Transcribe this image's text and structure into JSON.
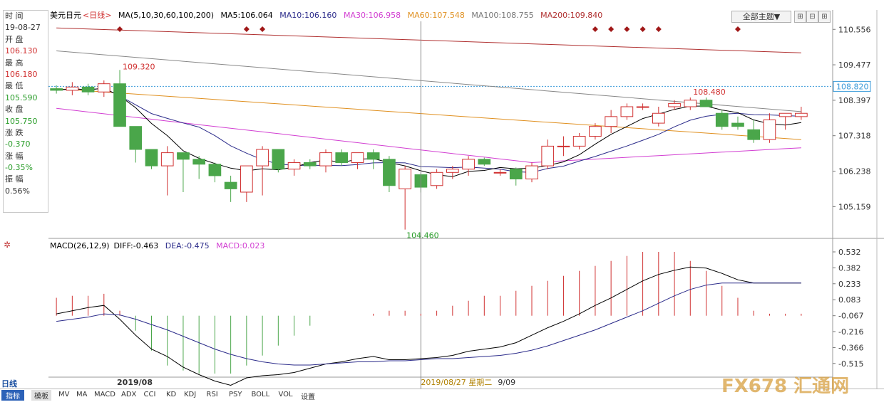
{
  "header": {
    "symbol": "美元日元",
    "period": "<日线>",
    "ma_params": "MA(5,10,30,60,100,200)",
    "ma5": "MA5:106.064",
    "ma10": "MA10:106.160",
    "ma30": "MA30:106.958",
    "ma60": "MA60:107.548",
    "ma100": "MA100:108.755",
    "ma200": "MA200:109.840",
    "theme_button": "全部主题▼"
  },
  "info_panel": [
    {
      "label": "时 间",
      "value": "19-08-27",
      "value_color": "dark"
    },
    {
      "label": "开 盘",
      "value": "106.130",
      "value_color": "red"
    },
    {
      "label": "最 高",
      "value": "106.180",
      "value_color": "red"
    },
    {
      "label": "最 低",
      "value": "105.590",
      "value_color": "green"
    },
    {
      "label": "收 盘",
      "value": "105.750",
      "value_color": "green"
    },
    {
      "label": "涨 跌",
      "value": "-0.370",
      "value_color": "green"
    },
    {
      "label": "涨 幅",
      "value": "-0.35%",
      "value_color": "green"
    },
    {
      "label": "振 幅",
      "value": "0.56%",
      "value_color": "dark"
    }
  ],
  "price_axis": {
    "ticks": [
      "110.556",
      "109.477",
      "108.397",
      "107.318",
      "106.238",
      "105.159"
    ],
    "current_price_label": "108.820",
    "annotations": [
      "109.320",
      "108.480",
      "104.460"
    ]
  },
  "macd": {
    "title": "MACD(26,12,9)",
    "diff": "DIFF:-0.463",
    "dea": "DEA:-0.475",
    "macd": "MACD:0.023",
    "ticks": [
      "0.532",
      "0.382",
      "0.233",
      "0.083",
      "-0.067",
      "-0.216",
      "-0.366",
      "-0.515"
    ]
  },
  "time_axis": {
    "left_label": "2019/08",
    "cursor_label": "2019/08/27 星期二",
    "right_label": "9/09"
  },
  "tabs": {
    "period_label": "日线",
    "active": "指标",
    "template": "模板",
    "items": [
      "MV",
      "MA",
      "MACD",
      "ADX",
      "CCI",
      "KD",
      "KDJ",
      "RSI",
      "PSY",
      "BOLL",
      "VOL",
      "设置"
    ]
  },
  "watermark": "FX678 汇通网",
  "colors": {
    "up": "#d03030",
    "down": "#4aa64a",
    "ma5": "#000000",
    "ma10": "#2b2b8a",
    "ma30": "#d23fd2",
    "ma60": "#e09020",
    "ma100": "#888888",
    "ma200": "#b03030"
  },
  "chart_data": {
    "type": "candlestick",
    "ylim": [
      104.3,
      110.8
    ],
    "candles": [
      {
        "o": 108.75,
        "h": 108.85,
        "l": 108.6,
        "c": 108.7
      },
      {
        "o": 108.7,
        "h": 108.95,
        "l": 108.55,
        "c": 108.8
      },
      {
        "o": 108.8,
        "h": 108.9,
        "l": 108.55,
        "c": 108.65
      },
      {
        "o": 108.65,
        "h": 109.0,
        "l": 108.5,
        "c": 108.9
      },
      {
        "o": 108.9,
        "h": 109.32,
        "l": 107.6,
        "c": 107.6
      },
      {
        "o": 107.6,
        "h": 107.6,
        "l": 106.5,
        "c": 106.9
      },
      {
        "o": 106.9,
        "h": 106.9,
        "l": 106.3,
        "c": 106.4
      },
      {
        "o": 106.4,
        "h": 107.0,
        "l": 105.5,
        "c": 106.8
      },
      {
        "o": 106.8,
        "h": 106.8,
        "l": 105.6,
        "c": 106.6
      },
      {
        "o": 106.6,
        "h": 106.7,
        "l": 106.0,
        "c": 106.45
      },
      {
        "o": 106.45,
        "h": 106.5,
        "l": 105.9,
        "c": 106.1
      },
      {
        "o": 105.9,
        "h": 106.1,
        "l": 105.3,
        "c": 105.7
      },
      {
        "o": 105.6,
        "h": 106.4,
        "l": 105.3,
        "c": 106.4
      },
      {
        "o": 106.4,
        "h": 107.0,
        "l": 105.5,
        "c": 106.9
      },
      {
        "o": 106.9,
        "h": 106.9,
        "l": 106.2,
        "c": 106.3
      },
      {
        "o": 106.3,
        "h": 106.6,
        "l": 106.1,
        "c": 106.5
      },
      {
        "o": 106.5,
        "h": 106.6,
        "l": 106.3,
        "c": 106.4
      },
      {
        "o": 106.4,
        "h": 106.9,
        "l": 106.2,
        "c": 106.8
      },
      {
        "o": 106.8,
        "h": 106.9,
        "l": 106.4,
        "c": 106.5
      },
      {
        "o": 106.5,
        "h": 106.8,
        "l": 106.3,
        "c": 106.8
      },
      {
        "o": 106.8,
        "h": 106.9,
        "l": 106.3,
        "c": 106.6
      },
      {
        "o": 106.6,
        "h": 106.7,
        "l": 105.6,
        "c": 105.8
      },
      {
        "o": 105.7,
        "h": 106.4,
        "l": 104.46,
        "c": 106.3
      },
      {
        "o": 106.13,
        "h": 106.18,
        "l": 105.59,
        "c": 105.75
      },
      {
        "o": 105.8,
        "h": 106.3,
        "l": 105.7,
        "c": 106.2
      },
      {
        "o": 106.2,
        "h": 106.4,
        "l": 106.0,
        "c": 106.3
      },
      {
        "o": 106.3,
        "h": 106.7,
        "l": 106.1,
        "c": 106.6
      },
      {
        "o": 106.6,
        "h": 106.65,
        "l": 106.4,
        "c": 106.45
      },
      {
        "o": 106.2,
        "h": 106.3,
        "l": 106.1,
        "c": 106.2
      },
      {
        "o": 106.3,
        "h": 106.35,
        "l": 105.8,
        "c": 106.0
      },
      {
        "o": 106.0,
        "h": 106.5,
        "l": 105.9,
        "c": 106.4
      },
      {
        "o": 106.4,
        "h": 107.2,
        "l": 106.3,
        "c": 107.0
      },
      {
        "o": 107.0,
        "h": 107.3,
        "l": 106.7,
        "c": 107.0
      },
      {
        "o": 107.0,
        "h": 107.4,
        "l": 106.9,
        "c": 107.3
      },
      {
        "o": 107.3,
        "h": 107.7,
        "l": 107.2,
        "c": 107.6
      },
      {
        "o": 107.6,
        "h": 108.1,
        "l": 107.4,
        "c": 107.9
      },
      {
        "o": 107.9,
        "h": 108.3,
        "l": 107.8,
        "c": 108.2
      },
      {
        "o": 108.2,
        "h": 108.3,
        "l": 108.1,
        "c": 108.2
      },
      {
        "o": 107.7,
        "h": 108.2,
        "l": 107.6,
        "c": 108.0
      },
      {
        "o": 108.2,
        "h": 108.4,
        "l": 108.1,
        "c": 108.3
      },
      {
        "o": 108.2,
        "h": 108.48,
        "l": 108.1,
        "c": 108.4
      },
      {
        "o": 108.4,
        "h": 108.48,
        "l": 108.2,
        "c": 108.2
      },
      {
        "o": 108.0,
        "h": 108.1,
        "l": 107.5,
        "c": 107.6
      },
      {
        "o": 107.7,
        "h": 107.9,
        "l": 107.5,
        "c": 107.6
      },
      {
        "o": 107.5,
        "h": 107.8,
        "l": 107.1,
        "c": 107.2
      },
      {
        "o": 107.2,
        "h": 108.0,
        "l": 107.1,
        "c": 107.8
      },
      {
        "o": 107.9,
        "h": 108.0,
        "l": 107.5,
        "c": 108.0
      },
      {
        "o": 107.9,
        "h": 108.2,
        "l": 107.8,
        "c": 108.0
      }
    ],
    "macd_hist": [
      0.18,
      0.2,
      0.2,
      0.22,
      0.05,
      -0.15,
      -0.35,
      -0.5,
      -0.55,
      -0.6,
      -0.65,
      -0.6,
      -0.5,
      -0.4,
      -0.3,
      -0.2,
      -0.1,
      0.0,
      0.0,
      0.0,
      0.02,
      0.05,
      0.05,
      0.02,
      0.05,
      0.1,
      0.15,
      0.2,
      0.2,
      0.25,
      0.3,
      0.35,
      0.4,
      0.45,
      0.5,
      0.55,
      0.6,
      0.65,
      0.7,
      0.65,
      0.55,
      0.45,
      0.3,
      0.18,
      0.05,
      0.02,
      0.02,
      0.02
    ],
    "diff": [
      -0.05,
      -0.02,
      0.01,
      0.03,
      -0.1,
      -0.25,
      -0.38,
      -0.45,
      -0.55,
      -0.62,
      -0.68,
      -0.72,
      -0.65,
      -0.63,
      -0.62,
      -0.6,
      -0.56,
      -0.52,
      -0.5,
      -0.47,
      -0.45,
      -0.48,
      -0.48,
      -0.47,
      -0.46,
      -0.44,
      -0.4,
      -0.38,
      -0.36,
      -0.32,
      -0.25,
      -0.18,
      -0.12,
      -0.05,
      0.03,
      0.1,
      0.18,
      0.26,
      0.32,
      0.36,
      0.39,
      0.38,
      0.33,
      0.27,
      0.24,
      0.24,
      0.24,
      0.24
    ],
    "dea": [
      -0.12,
      -0.1,
      -0.08,
      -0.05,
      -0.06,
      -0.1,
      -0.15,
      -0.2,
      -0.26,
      -0.32,
      -0.38,
      -0.43,
      -0.47,
      -0.5,
      -0.52,
      -0.53,
      -0.53,
      -0.52,
      -0.51,
      -0.5,
      -0.5,
      -0.49,
      -0.49,
      -0.48,
      -0.47,
      -0.47,
      -0.46,
      -0.45,
      -0.44,
      -0.42,
      -0.39,
      -0.35,
      -0.3,
      -0.25,
      -0.2,
      -0.14,
      -0.08,
      -0.02,
      0.05,
      0.12,
      0.18,
      0.22,
      0.24,
      0.24,
      0.24,
      0.24,
      0.24,
      0.24
    ]
  }
}
